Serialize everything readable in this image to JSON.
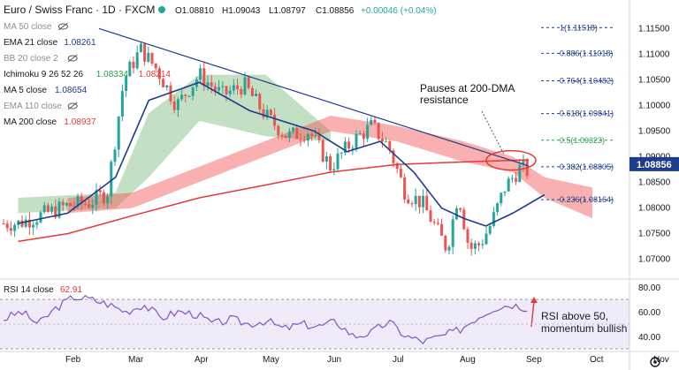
{
  "header": {
    "symbol_title": "Euro / Swiss Franc · 1D · FXCM",
    "ohlc": [
      {
        "label": "O",
        "value": "1.08810"
      },
      {
        "label": "H",
        "value": "1.09043"
      },
      {
        "label": "L",
        "value": "1.08797"
      },
      {
        "label": "C",
        "value": "1.08856"
      }
    ],
    "change": "+0.00046 (+0.04%)"
  },
  "legend": [
    {
      "label": "MA 50 close",
      "value": "",
      "color": "#9aa0a6",
      "hidden_icon": "eye-slash-icon"
    },
    {
      "label": "EMA 21 close",
      "value": "1.08261",
      "color": "#1e3c8c"
    },
    {
      "label": "BB 20 close 2",
      "value": "",
      "color": "#9aa0a6",
      "hidden_icon": "eye-slash-icon"
    },
    {
      "label": "Ichimoku 9 26 52 26",
      "value": "1.08334",
      "value2": "1.08214",
      "color": "#22a04a",
      "color2": "#e53935"
    },
    {
      "label": "MA 5 close",
      "value": "1.08654",
      "color": "#1e3c8c"
    },
    {
      "label": "EMA 110 close",
      "value": "",
      "color": "#9aa0a6",
      "hidden_icon": "eye-slash-icon"
    },
    {
      "label": "MA 200 close",
      "value": "1.08937",
      "color": "#e53935"
    }
  ],
  "annotations": {
    "resistance_note": "Pauses at 200-DMA\nresistance",
    "rsi_note": "RSI above 50,\nmomentum bullish"
  },
  "rsi_panel": {
    "label": "RSI 14 close",
    "value": "62.91",
    "value_color": "#e53935",
    "y_ticks": [
      "80.00",
      "60.00",
      "40.00"
    ],
    "last_value": 62.91,
    "band": [
      30,
      70
    ]
  },
  "chart_data": {
    "type": "candlestick",
    "title": "Euro / Swiss Franc · 1D · FXCM",
    "y_range": [
      1.0665,
      1.1185
    ],
    "y_ticks": [
      1.07,
      1.075,
      1.08,
      1.085,
      1.09,
      1.095,
      1.1,
      1.105,
      1.11,
      1.115
    ],
    "x_ticks": [
      "Feb",
      "Mar",
      "Apr",
      "May",
      "Jun",
      "Jul",
      "Aug",
      "Sep",
      "Oct",
      "Nov"
    ],
    "last_price": "1.08856",
    "fibonacci": [
      {
        "label": "1(1.11518)",
        "value": 1.11518,
        "color": "#1e3c8c"
      },
      {
        "label": "0.886(1.11018)",
        "value": 1.11018,
        "color": "#1e3c8c"
      },
      {
        "label": "0.764(1.10482)",
        "value": 1.10482,
        "color": "#1e3c8c"
      },
      {
        "label": "0.618(1.09841)",
        "value": 1.09841,
        "color": "#1e3c8c"
      },
      {
        "label": "0.5(1.09323)",
        "value": 1.09323,
        "color": "#22a04a"
      },
      {
        "label": "0.382(1.08805)",
        "value": 1.08805,
        "color": "#1e3c8c"
      },
      {
        "label": "0.236(1.08164)",
        "value": 1.08164,
        "color": "#1e3c8c"
      }
    ],
    "trendline": {
      "from": [
        "Mar",
        1.115
      ],
      "to": [
        "Sep",
        1.0882
      ]
    },
    "price_anchors": [
      [
        "Jan",
        1.077
      ],
      [
        "Feb",
        1.079
      ],
      [
        "Feb",
        1.0805
      ],
      [
        "Feb",
        1.081
      ],
      [
        "Mar",
        1.083
      ],
      [
        "Mar",
        1.105
      ],
      [
        "Mar",
        1.111
      ],
      [
        "Mar",
        1.107
      ],
      [
        "Apr",
        1.1
      ],
      [
        "Apr",
        1.106
      ],
      [
        "Apr",
        1.102
      ],
      [
        "May",
        1.104
      ],
      [
        "May",
        1.098
      ],
      [
        "May",
        1.094
      ],
      [
        "Jun",
        1.095
      ],
      [
        "Jun",
        1.088
      ],
      [
        "Jun",
        1.093
      ],
      [
        "Jul",
        1.096
      ],
      [
        "Jul",
        1.092
      ],
      [
        "Jul",
        1.083
      ],
      [
        "Jul",
        1.081
      ],
      [
        "Aug",
        1.076
      ],
      [
        "Aug",
        1.072
      ],
      [
        "Aug",
        1.083
      ],
      [
        "Aug",
        1.072
      ],
      [
        "Aug",
        1.073
      ],
      [
        "Aug",
        1.077
      ],
      [
        "Sep",
        1.084
      ],
      [
        "Sep",
        1.088
      ],
      [
        "Sep",
        1.086
      ],
      [
        "Sep",
        1.0886
      ]
    ],
    "ema21_anchors": [
      [
        "Jan",
        1.077
      ],
      [
        "Feb",
        1.079
      ],
      [
        "Mar",
        1.086
      ],
      [
        "Mar",
        1.101
      ],
      [
        "Apr",
        1.1045
      ],
      [
        "May",
        1.099
      ],
      [
        "May",
        1.097
      ],
      [
        "Jun",
        1.095
      ],
      [
        "Jun",
        1.091
      ],
      [
        "Jul",
        1.093
      ],
      [
        "Jul",
        1.087
      ],
      [
        "Aug",
        1.08
      ],
      [
        "Aug",
        1.078
      ],
      [
        "Aug",
        1.0765
      ],
      [
        "Sep",
        1.079
      ],
      [
        "Sep",
        1.0826
      ]
    ],
    "ma200_anchors": [
      [
        "Jan",
        1.0735
      ],
      [
        "Feb",
        1.075
      ],
      [
        "Mar",
        1.0785
      ],
      [
        "Apr",
        1.082
      ],
      [
        "May",
        1.0845
      ],
      [
        "Jun",
        1.087
      ],
      [
        "Jul",
        1.0885
      ],
      [
        "Aug",
        1.089
      ],
      [
        "Sep",
        1.0894
      ]
    ],
    "cloud_bullish": [
      [
        "Jan",
        1.079,
        1.082
      ],
      [
        "Feb",
        1.0795,
        1.0825
      ],
      [
        "Mar",
        1.08,
        1.083
      ],
      [
        "Mar",
        1.086,
        1.0985
      ],
      [
        "Apr",
        1.097,
        1.106
      ],
      [
        "May",
        1.094,
        1.106
      ],
      [
        "Jun",
        1.093,
        1.095
      ]
    ],
    "cloud_bearish": [
      [
        "Feb",
        1.079,
        1.082
      ],
      [
        "Mar",
        1.08,
        1.083
      ],
      [
        "Jun",
        1.098,
        1.095
      ],
      [
        "Jul",
        1.096,
        1.093
      ],
      [
        "Aug",
        1.089,
        1.093
      ],
      [
        "Sep",
        1.087,
        1.09
      ],
      [
        "Sep",
        1.082,
        1.086
      ],
      [
        "Oct",
        1.078,
        1.084
      ]
    ],
    "rsi": {
      "label": "RSI 14 close",
      "last": 62.91,
      "values": [
        54,
        60,
        50,
        63,
        72,
        70,
        66,
        60,
        66,
        55,
        60,
        58,
        50,
        54,
        50,
        53,
        46,
        50,
        48,
        52,
        40,
        43,
        52,
        40,
        36,
        40,
        45,
        55,
        63,
        66,
        62.91
      ]
    }
  }
}
